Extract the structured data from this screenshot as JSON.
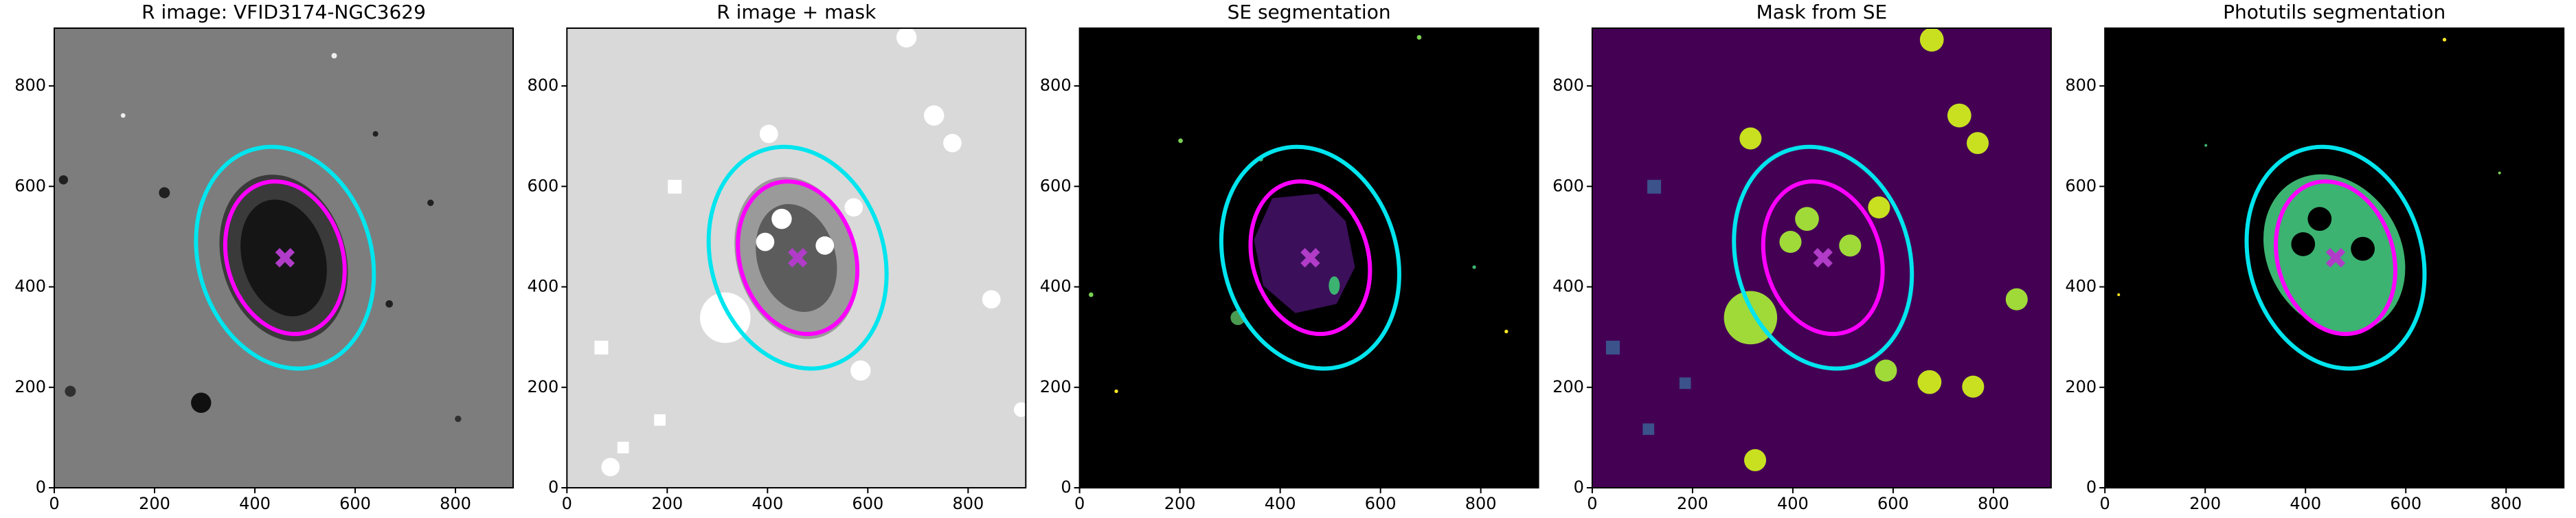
{
  "chart_data": [
    {
      "type": "image",
      "title": "R image: VFID3174-NGC3629",
      "background": "#7d7d7d",
      "xlim": [
        0,
        915
      ],
      "ylim": [
        0,
        915
      ],
      "xticks": [
        0,
        200,
        400,
        600,
        800
      ],
      "yticks": [
        0,
        200,
        400,
        600,
        800
      ],
      "ellipses": [
        {
          "color": "#00e5ee",
          "center": [
            460,
            458
          ],
          "semi_axes": [
            225,
            172
          ],
          "angle": 107
        },
        {
          "color": "#ff00ff",
          "center": [
            460,
            458
          ],
          "semi_axes": [
            155,
            115
          ],
          "angle": 107
        }
      ],
      "marker": {
        "color": "#b03cc8",
        "x": 460,
        "y": 458
      }
    },
    {
      "type": "image",
      "title": "R image + mask",
      "background": "#d9d9d9",
      "xlim": [
        0,
        915
      ],
      "ylim": [
        0,
        915
      ],
      "xticks": [
        0,
        200,
        400,
        600,
        800
      ],
      "yticks": [
        0,
        200,
        400,
        600,
        800
      ],
      "ellipses": [
        {
          "color": "#00e5ee",
          "center": [
            460,
            458
          ],
          "semi_axes": [
            225,
            172
          ],
          "angle": 107
        },
        {
          "color": "#ff00ff",
          "center": [
            460,
            458
          ],
          "semi_axes": [
            155,
            115
          ],
          "angle": 107
        }
      ],
      "marker": {
        "color": "#b03cc8",
        "x": 460,
        "y": 458
      }
    },
    {
      "type": "image",
      "title": "SE segmentation",
      "background": "#000000",
      "xlim": [
        0,
        915
      ],
      "ylim": [
        0,
        915
      ],
      "xticks": [
        0,
        200,
        400,
        600,
        800
      ],
      "yticks": [
        0,
        200,
        400,
        600,
        800
      ],
      "ellipses": [
        {
          "color": "#00e5ee",
          "center": [
            460,
            458
          ],
          "semi_axes": [
            225,
            172
          ],
          "angle": 107
        },
        {
          "color": "#ff00ff",
          "center": [
            460,
            458
          ],
          "semi_axes": [
            155,
            115
          ],
          "angle": 107
        }
      ],
      "marker": {
        "color": "#b03cc8",
        "x": 460,
        "y": 458
      }
    },
    {
      "type": "image",
      "title": "Mask from SE",
      "background": "#440154",
      "xlim": [
        0,
        915
      ],
      "ylim": [
        0,
        915
      ],
      "xticks": [
        0,
        200,
        400,
        600,
        800
      ],
      "yticks": [
        0,
        200,
        400,
        600,
        800
      ],
      "ellipses": [
        {
          "color": "#00e5ee",
          "center": [
            460,
            458
          ],
          "semi_axes": [
            225,
            172
          ],
          "angle": 107
        },
        {
          "color": "#ff00ff",
          "center": [
            460,
            458
          ],
          "semi_axes": [
            155,
            115
          ],
          "angle": 107
        }
      ],
      "marker": {
        "color": "#b03cc8",
        "x": 460,
        "y": 458
      }
    },
    {
      "type": "image",
      "title": "Photutils segmentation",
      "background": "#000000",
      "xlim": [
        0,
        915
      ],
      "ylim": [
        0,
        915
      ],
      "xticks": [
        0,
        200,
        400,
        600,
        800
      ],
      "yticks": [
        0,
        200,
        400,
        600,
        800
      ],
      "ellipses": [
        {
          "color": "#00e5ee",
          "center": [
            460,
            458
          ],
          "semi_axes": [
            225,
            172
          ],
          "angle": 107
        },
        {
          "color": "#ff00ff",
          "center": [
            460,
            458
          ],
          "semi_axes": [
            155,
            115
          ],
          "angle": 107
        }
      ],
      "marker": {
        "color": "#b03cc8",
        "x": 460,
        "y": 458
      }
    }
  ]
}
